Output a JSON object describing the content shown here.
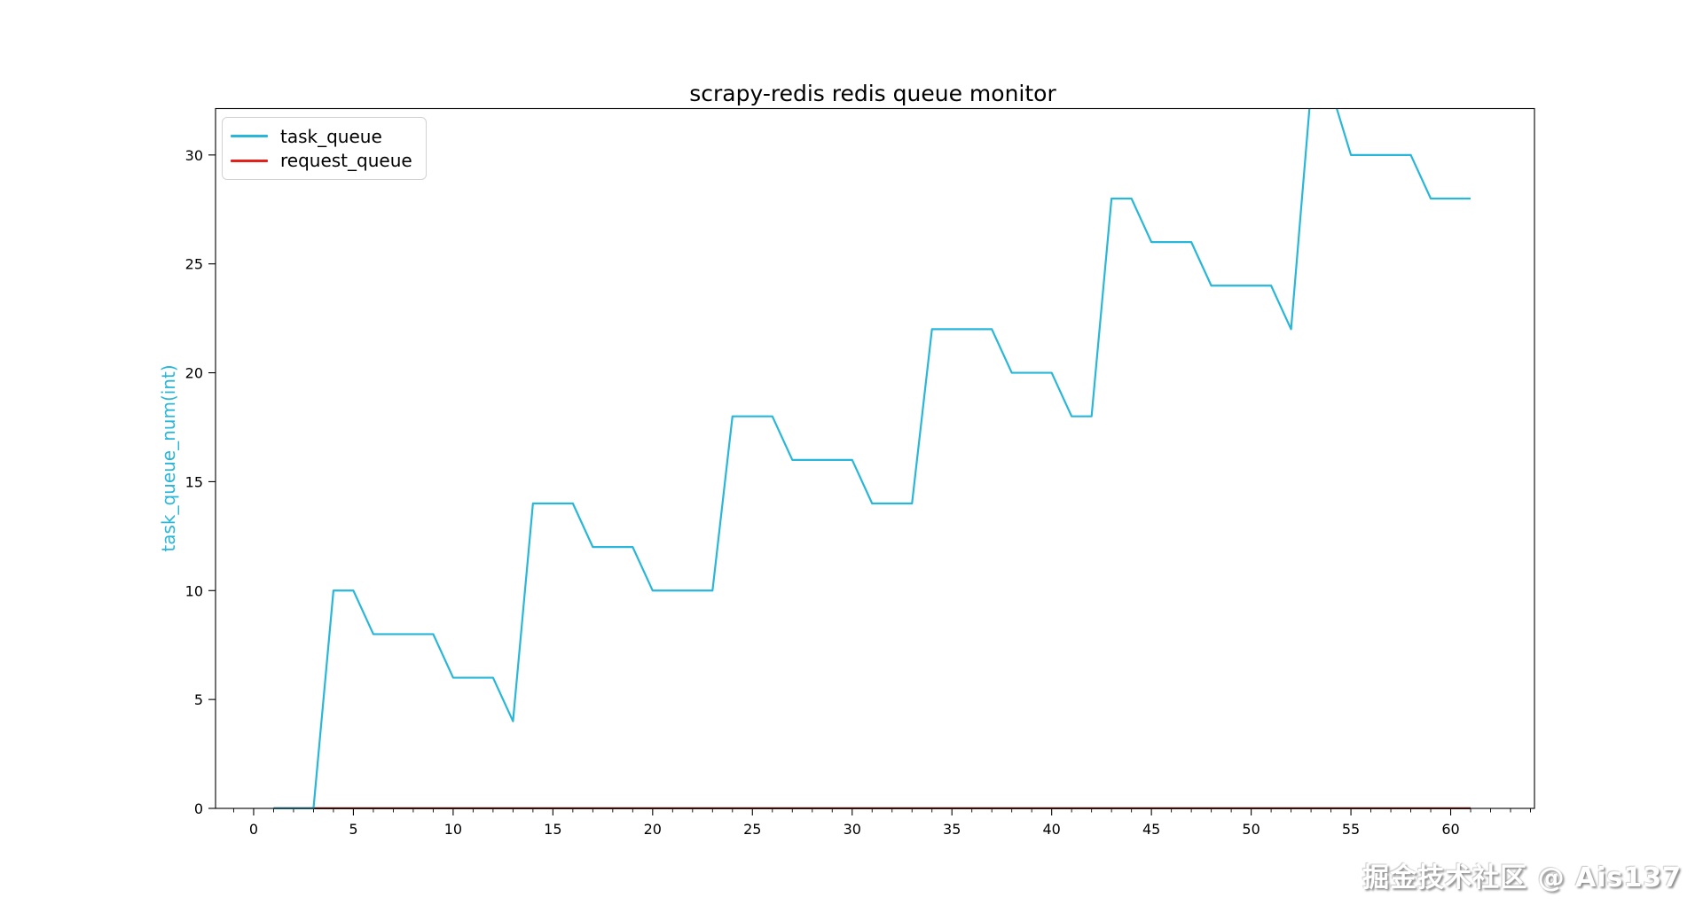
{
  "title": "scrapy-redis redis queue monitor",
  "watermark": "掘金技术社区 @ Ais137",
  "colors": {
    "task_queue": "#29b7d9",
    "request_queue_legend": "#e3211a",
    "request_queue_plotted": "#7a1c11",
    "axis": "#000000"
  },
  "chart_data": {
    "type": "line",
    "title": "scrapy-redis redis queue monitor",
    "xlabel": "",
    "ylabel": "task_queue_num(int)",
    "grid": false,
    "legend_position": "upper left",
    "xlim": [
      -1.91,
      64.2
    ],
    "ylim": [
      0,
      32.13
    ],
    "xticks": [
      0,
      5,
      10,
      15,
      20,
      25,
      30,
      35,
      40,
      45,
      50,
      55,
      60
    ],
    "yticks": [
      0,
      5,
      10,
      15,
      20,
      25,
      30
    ],
    "minor_xtick_step": 1,
    "x": [
      1,
      2,
      3,
      4,
      5,
      6,
      7,
      8,
      9,
      10,
      11,
      12,
      13,
      14,
      15,
      16,
      17,
      18,
      19,
      20,
      21,
      22,
      23,
      24,
      25,
      26,
      27,
      28,
      29,
      30,
      31,
      32,
      33,
      34,
      35,
      36,
      37,
      38,
      39,
      40,
      41,
      42,
      43,
      44,
      45,
      46,
      47,
      48,
      49,
      50,
      51,
      52,
      53,
      54,
      55,
      56,
      57,
      58,
      59,
      60,
      61
    ],
    "series": [
      {
        "name": "task_queue",
        "color": "#29b7d9",
        "values": [
          0,
          0,
          0,
          10,
          10,
          8,
          8,
          8,
          8,
          6,
          6,
          6,
          4,
          14,
          14,
          14,
          12,
          12,
          12,
          10,
          10,
          10,
          10,
          18,
          18,
          18,
          16,
          16,
          16,
          16,
          14,
          14,
          14,
          22,
          22,
          22,
          22,
          20,
          20,
          20,
          18,
          18,
          28,
          28,
          26,
          26,
          26,
          24,
          24,
          24,
          24,
          22,
          33,
          33,
          30,
          30,
          30,
          30,
          28,
          28,
          28
        ]
      },
      {
        "name": "request_queue",
        "color": "#e3211a",
        "plot_color": "#7a1c11",
        "values": [
          0,
          0,
          0,
          0,
          0,
          0,
          0,
          0,
          0,
          0,
          0,
          0,
          0,
          0,
          0,
          0,
          0,
          0,
          0,
          0,
          0,
          0,
          0,
          0,
          0,
          0,
          0,
          0,
          0,
          0,
          0,
          0,
          0,
          0,
          0,
          0,
          0,
          0,
          0,
          0,
          0,
          0,
          0,
          0,
          0,
          0,
          0,
          0,
          0,
          0,
          0,
          0,
          0,
          0,
          0,
          0,
          0,
          0,
          0,
          0,
          0
        ]
      }
    ]
  }
}
